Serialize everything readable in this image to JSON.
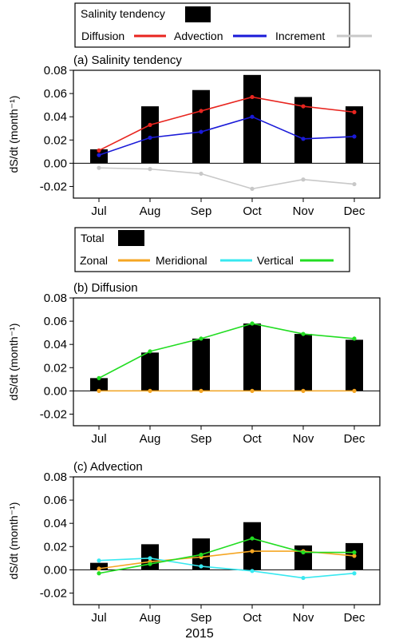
{
  "legend1": {
    "title": "Salinity tendency",
    "items": [
      {
        "label": "Diffusion",
        "color": "#e8251f"
      },
      {
        "label": "Advection",
        "color": "#1a1ad8"
      },
      {
        "label": "Increment",
        "color": "#c8c8c8"
      }
    ]
  },
  "legend2": {
    "title": "Total",
    "items": [
      {
        "label": "Zonal",
        "color": "#f5a623"
      },
      {
        "label": "Meridional",
        "color": "#38e8f0"
      },
      {
        "label": "Vertical",
        "color": "#22dd22"
      }
    ]
  },
  "xlabel": "2015",
  "chart_data": [
    {
      "type": "bar",
      "title": "(a) Salinity tendency",
      "ylabel": "dS/dt (month⁻¹)",
      "ylim": [
        -0.03,
        0.08
      ],
      "yticks": [
        -0.02,
        0.0,
        0.02,
        0.04,
        0.06,
        0.08
      ],
      "categories": [
        "Jul",
        "Aug",
        "Sep",
        "Oct",
        "Nov",
        "Dec"
      ],
      "bar_color": "#000000",
      "values": [
        0.012,
        0.049,
        0.063,
        0.076,
        0.057,
        0.049
      ],
      "series": [
        {
          "name": "Diffusion",
          "color": "#e8251f",
          "values": [
            0.011,
            0.033,
            0.045,
            0.057,
            0.049,
            0.044
          ]
        },
        {
          "name": "Advection",
          "color": "#1a1ad8",
          "values": [
            0.007,
            0.022,
            0.027,
            0.04,
            0.021,
            0.023
          ]
        },
        {
          "name": "Increment",
          "color": "#c8c8c8",
          "values": [
            -0.004,
            -0.005,
            -0.009,
            -0.022,
            -0.014,
            -0.018
          ]
        }
      ]
    },
    {
      "type": "bar",
      "title": "(b) Diffusion",
      "ylabel": "dS/dt (month⁻¹)",
      "ylim": [
        -0.03,
        0.08
      ],
      "yticks": [
        -0.02,
        0.0,
        0.02,
        0.04,
        0.06,
        0.08
      ],
      "categories": [
        "Jul",
        "Aug",
        "Sep",
        "Oct",
        "Nov",
        "Dec"
      ],
      "bar_color": "#000000",
      "values": [
        0.011,
        0.033,
        0.045,
        0.058,
        0.049,
        0.044
      ],
      "series": [
        {
          "name": "Zonal",
          "color": "#f5a623",
          "values": [
            0.0,
            0.0,
            0.0,
            0.0,
            0.0,
            0.0
          ]
        },
        {
          "name": "Vertical",
          "color": "#22dd22",
          "values": [
            0.011,
            0.034,
            0.045,
            0.058,
            0.049,
            0.045
          ]
        }
      ]
    },
    {
      "type": "bar",
      "title": "(c) Advection",
      "ylabel": "dS/dt (month⁻¹)",
      "ylim": [
        -0.03,
        0.08
      ],
      "yticks": [
        -0.02,
        0.0,
        0.02,
        0.04,
        0.06,
        0.08
      ],
      "categories": [
        "Jul",
        "Aug",
        "Sep",
        "Oct",
        "Nov",
        "Dec"
      ],
      "bar_color": "#000000",
      "values": [
        0.006,
        0.022,
        0.027,
        0.041,
        0.021,
        0.023
      ],
      "series": [
        {
          "name": "Zonal",
          "color": "#f5a623",
          "values": [
            0.001,
            0.007,
            0.011,
            0.016,
            0.016,
            0.012
          ]
        },
        {
          "name": "Meridional",
          "color": "#38e8f0",
          "values": [
            0.008,
            0.01,
            0.003,
            -0.001,
            -0.007,
            -0.003
          ]
        },
        {
          "name": "Vertical",
          "color": "#22dd22",
          "values": [
            -0.003,
            0.005,
            0.013,
            0.027,
            0.015,
            0.015
          ]
        }
      ]
    }
  ]
}
